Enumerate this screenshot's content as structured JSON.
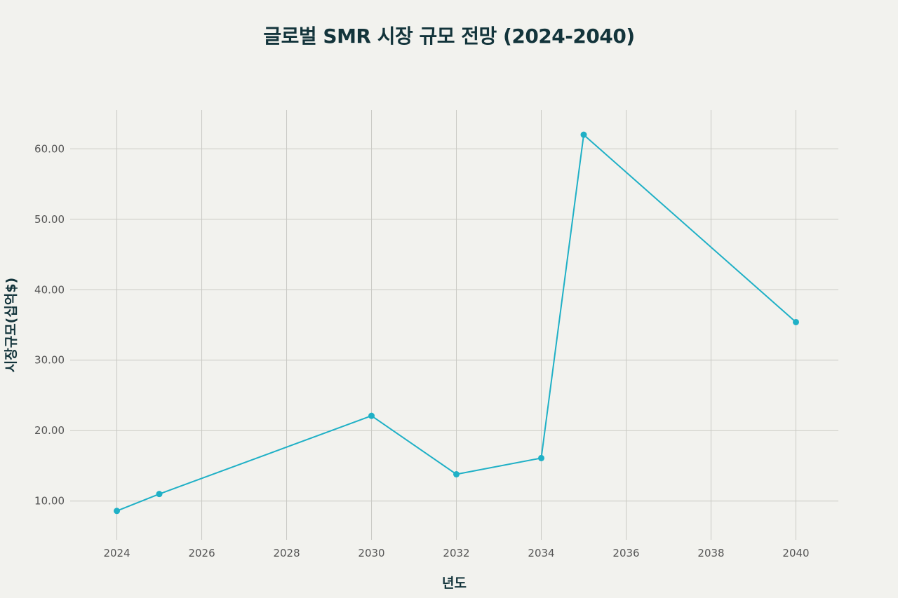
{
  "chart_data": {
    "type": "line",
    "title": "글로벌 SMR 시장 규모 전망 (2024-2040)",
    "xlabel": "년도",
    "ylabel": "시장규모(십억$)",
    "x": [
      2024,
      2025,
      2030,
      2032,
      2034,
      2035,
      2040
    ],
    "series": [
      {
        "values": [
          8.6,
          11.0,
          22.1,
          13.8,
          16.1,
          62.0,
          35.4
        ],
        "color": "#1fb0c6"
      }
    ],
    "xlim": [
      2022.9,
      2041.0
    ],
    "ylim": [
      4.5,
      65.5
    ],
    "xticks": [
      2024,
      2026,
      2028,
      2030,
      2032,
      2034,
      2036,
      2038,
      2040
    ],
    "xtick_labels": [
      "2024",
      "2026",
      "2028",
      "2030",
      "2032",
      "2034",
      "2036",
      "2038",
      "2040"
    ],
    "yticks": [
      10,
      20,
      30,
      40,
      50,
      60
    ],
    "ytick_labels": [
      "10.00",
      "20.00",
      "30.00",
      "40.00",
      "50.00",
      "60.00"
    ],
    "grid": true,
    "legend": "none"
  }
}
